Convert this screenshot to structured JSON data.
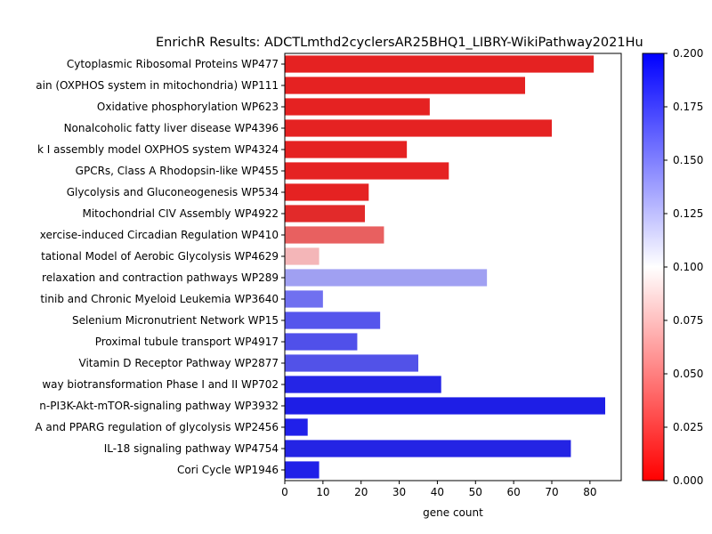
{
  "chart_data": {
    "type": "bar",
    "orientation": "horizontal",
    "title": "EnrichR Results: ADCTLmthd2cyclersAR25BHQ1_LIBRY-WikiPathway2021Hu",
    "xlabel": "gene count",
    "ylabel": "",
    "xlim": [
      0,
      88.2
    ],
    "xticks": [
      0,
      10,
      20,
      30,
      40,
      50,
      60,
      70,
      80
    ],
    "categories": [
      "Cytoplasmic Ribosomal Proteins WP477",
      "ain (OXPHOS system in mitochondria) WP111",
      "Oxidative phosphorylation WP623",
      "Nonalcoholic fatty liver disease WP4396",
      "k I assembly model OXPHOS system WP4324",
      "GPCRs, Class A Rhodopsin-like WP455",
      "Glycolysis and Gluconeogenesis WP534",
      "Mitochondrial CIV Assembly WP4922",
      "xercise-induced Circadian Regulation WP410",
      "tational Model of Aerobic Glycolysis WP4629",
      "relaxation and contraction pathways WP289",
      "tinib and Chronic Myeloid Leukemia WP3640",
      "Selenium Micronutrient Network WP15",
      "Proximal tubule transport WP4917",
      "Vitamin D Receptor Pathway WP2877",
      "way biotransformation Phase I and II WP702",
      "n-PI3K-Akt-mTOR-signaling pathway WP3932",
      "A and PPARG regulation of glycolysis WP2456",
      "IL-18 signaling pathway WP4754",
      "Cori Cycle WP1946"
    ],
    "values": [
      81,
      63,
      38,
      70,
      32,
      43,
      22,
      21,
      26,
      9,
      53,
      10,
      25,
      19,
      35,
      41,
      84,
      6,
      75,
      9
    ],
    "colors": [
      "#e52222",
      "#e52222",
      "#e52222",
      "#e52222",
      "#e52222",
      "#e52222",
      "#e52222",
      "#e22a2a",
      "#e86060",
      "#f4b6b8",
      "#a0a0f2",
      "#7070f0",
      "#5555ec",
      "#5050ea",
      "#5252e8",
      "#2525e6",
      "#1e1ee6",
      "#2020ea",
      "#2424e4",
      "#2020e8"
    ],
    "colorbar": {
      "range": [
        0.0,
        0.2
      ],
      "ticks": [
        "0.000",
        "0.025",
        "0.050",
        "0.075",
        "0.100",
        "0.125",
        "0.150",
        "0.175",
        "0.200"
      ],
      "colors": {
        "low": "#ff0000",
        "mid": "#ffffff",
        "high": "#0000ff"
      }
    },
    "grid": false
  }
}
